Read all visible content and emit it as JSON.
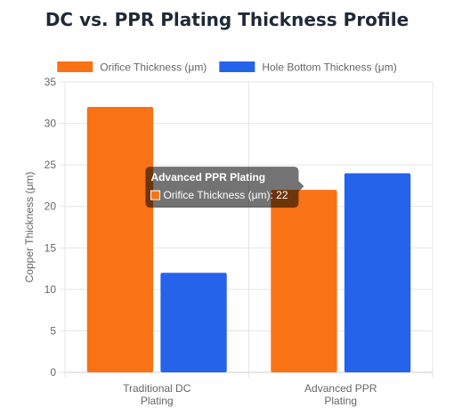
{
  "chart_data": {
    "type": "bar",
    "title": "DC vs. PPR Plating Thickness Profile",
    "xlabel": "",
    "ylabel": "Copper Thickness (μm)",
    "ylim": [
      0,
      35
    ],
    "yticks": [
      0,
      5,
      10,
      15,
      20,
      25,
      30,
      35
    ],
    "categories": [
      [
        "Traditional DC",
        "Plating"
      ],
      [
        "Advanced PPR",
        "Plating"
      ]
    ],
    "series": [
      {
        "name": "Orifice Thickness (μm)",
        "color": "#f97316",
        "values": [
          32,
          22
        ]
      },
      {
        "name": "Hole Bottom Thickness (μm)",
        "color": "#2563eb",
        "values": [
          12,
          24
        ]
      }
    ],
    "legend_position": "top",
    "grid": true,
    "tooltip": {
      "title": "Advanced PPR Plating",
      "label": "Orifice Thickness (μm): 22",
      "category_index": 1,
      "series_index": 0
    }
  }
}
